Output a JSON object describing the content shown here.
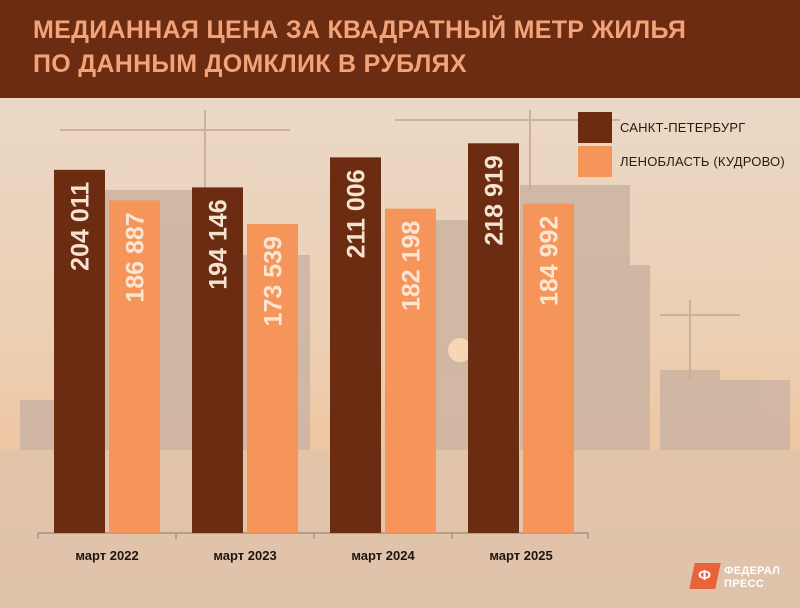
{
  "header": {
    "title_line1": "МЕДИАННАЯ ЦЕНА ЗА КВАДРАТНЫЙ МЕТР ЖИЛЬЯ",
    "title_line2": "ПО ДАННЫМ ДОМКЛИК В РУБЛЯХ"
  },
  "logo": {
    "mark": "Ф",
    "line1": "ФЕДЕРАЛ",
    "line2": "ПРЕСС"
  },
  "colors": {
    "header": "#6b2c12",
    "title": "#f3a37a",
    "spb": "#6b2c12",
    "lenobl": "#f6955a",
    "bar_label_spb": "#f5e3d2",
    "bar_label_lenobl": "#fbe6d4"
  },
  "chart_data": {
    "type": "bar",
    "title": "МЕДИАННАЯ ЦЕНА ЗА КВАДРАТНЫЙ МЕТР ЖИЛЬЯ ПО ДАННЫМ ДОМКЛИК В РУБЛЯХ",
    "categories": [
      "март 2022",
      "март 2023",
      "март 2024",
      "март 2025"
    ],
    "series": [
      {
        "name": "САНКТ-ПЕТЕРБУРГ",
        "values": [
          204011,
          194146,
          211006,
          218919
        ],
        "labels": [
          "204 011",
          "194 146",
          "211 006",
          "218 919"
        ]
      },
      {
        "name": "ЛЕНОБЛАСТЬ (КУДРОВО)",
        "values": [
          186887,
          173539,
          182198,
          184992
        ],
        "labels": [
          "186 887",
          "173 539",
          "182 198",
          "184 992"
        ]
      }
    ],
    "legend": "top-right",
    "grid": false,
    "ylim": [
      0,
      232000
    ]
  }
}
